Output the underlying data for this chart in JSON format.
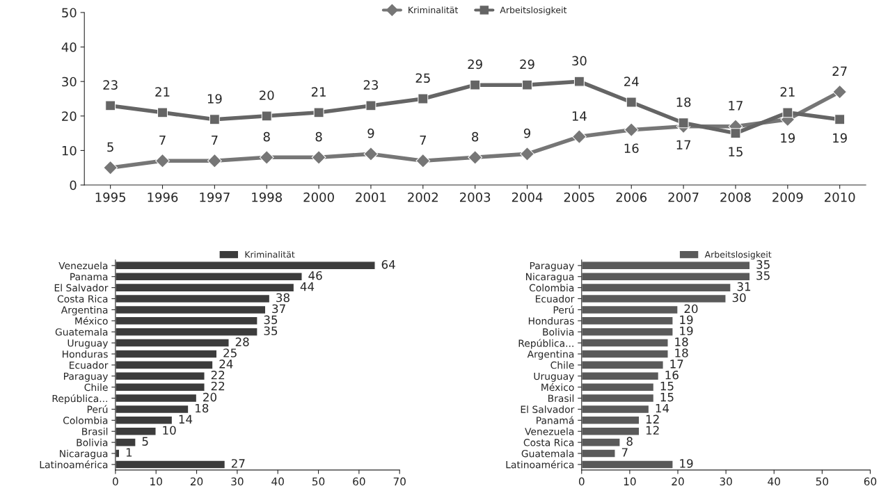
{
  "chart_data": [
    {
      "type": "line",
      "categories": [
        "1995",
        "1996",
        "1997",
        "1998",
        "2000",
        "2001",
        "2002",
        "2003",
        "2004",
        "2005",
        "2006",
        "2007",
        "2008",
        "2009",
        "2010"
      ],
      "series": [
        {
          "name": "Kriminalität",
          "color": "#767676",
          "marker": "diamond",
          "values": [
            5,
            7,
            7,
            8,
            8,
            9,
            7,
            8,
            9,
            14,
            16,
            17,
            17,
            19,
            27
          ]
        },
        {
          "name": "Arbeitslosigkeit",
          "color": "#656565",
          "marker": "square",
          "values": [
            23,
            21,
            19,
            20,
            21,
            23,
            25,
            29,
            29,
            30,
            24,
            18,
            15,
            21,
            19
          ]
        }
      ],
      "ylim": [
        0,
        50
      ],
      "yticks": [
        0,
        10,
        20,
        30,
        40,
        50
      ],
      "data_labels": true,
      "legend": "top",
      "grid": false,
      "line_style": "solid"
    },
    {
      "type": "bar",
      "orientation": "horizontal",
      "categories": [
        "Venezuela",
        "Panama",
        "El Salvador",
        "Costa Rica",
        "Argentina",
        "México",
        "Guatemala",
        "Uruguay",
        "Honduras",
        "Ecuador",
        "Paraguay",
        "Chile",
        "República...",
        "Perú",
        "Colombia",
        "Brasil",
        "Bolivia",
        "Nicaragua",
        "Latinoamérica"
      ],
      "series": [
        {
          "name": "Kriminalität",
          "color": "#3c3c3c",
          "values": [
            64,
            46,
            44,
            38,
            37,
            35,
            35,
            28,
            25,
            24,
            22,
            22,
            20,
            18,
            14,
            10,
            5,
            1,
            27
          ]
        }
      ],
      "xlim": [
        0,
        70
      ],
      "xticks": [
        0,
        10,
        20,
        30,
        40,
        50,
        60,
        70
      ],
      "data_labels": true,
      "legend": "top",
      "grid": false
    },
    {
      "type": "bar",
      "orientation": "horizontal",
      "categories": [
        "Paraguay",
        "Nicaragua",
        "Colombia",
        "Ecuador",
        "Perú",
        "Honduras",
        "Bolivia",
        "República...",
        "Argentina",
        "Chile",
        "Uruguay",
        "México",
        "Brasil",
        "El Salvador",
        "Panamá",
        "Venezuela",
        "Costa Rica",
        "Guatemala",
        "Latinoamérica"
      ],
      "series": [
        {
          "name": "Arbeitslosigkeit",
          "color": "#5a5a5a",
          "values": [
            35,
            35,
            31,
            30,
            20,
            19,
            19,
            18,
            18,
            17,
            16,
            15,
            15,
            14,
            12,
            12,
            8,
            7,
            19
          ]
        }
      ],
      "xlim": [
        0,
        60
      ],
      "xticks": [
        0,
        10,
        20,
        30,
        40,
        50,
        60
      ],
      "data_labels": true,
      "legend": "top",
      "grid": false
    }
  ]
}
